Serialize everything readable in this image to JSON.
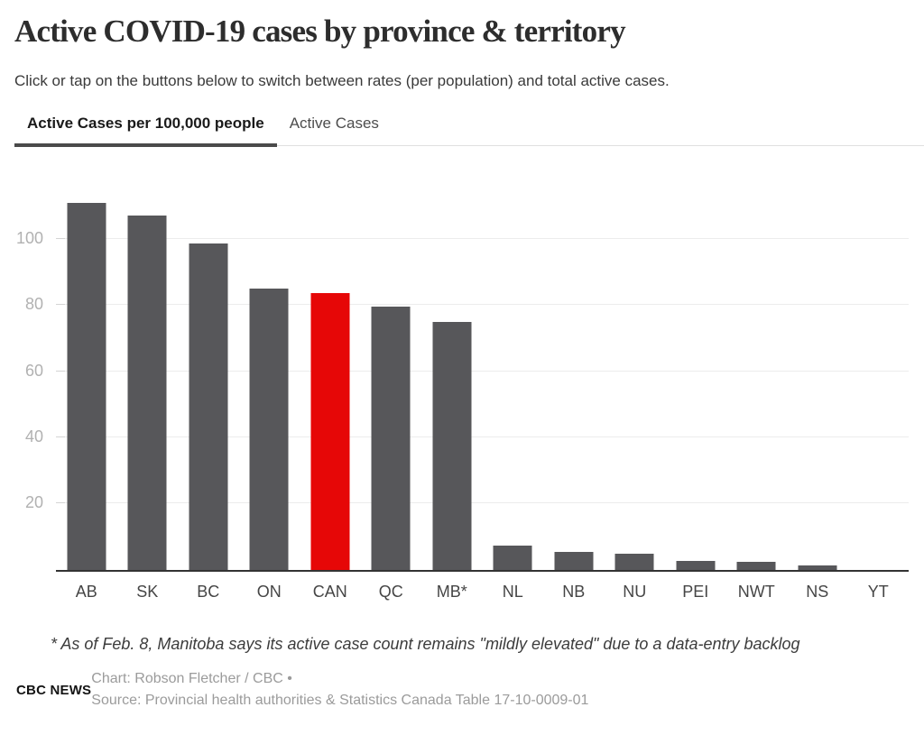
{
  "header": {
    "title": "Active COVID-19 cases by province & territory",
    "subtitle": "Click or tap on the buttons below to switch between rates (per population) and total active cases."
  },
  "tabs": [
    {
      "label": "Active Cases per 100,000 people",
      "active": true
    },
    {
      "label": "Active Cases",
      "active": false
    }
  ],
  "chart_data": {
    "type": "bar",
    "categories": [
      "AB",
      "SK",
      "BC",
      "ON",
      "CAN",
      "QC",
      "MB*",
      "NL",
      "NB",
      "NU",
      "PEI",
      "NWT",
      "NS",
      "YT"
    ],
    "values": [
      111,
      107,
      98.5,
      85,
      83.5,
      79.5,
      75,
      7.2,
      5.2,
      4.8,
      2.5,
      2.2,
      1.2,
      0
    ],
    "highlight_category": "CAN",
    "bar_color": "#57575a",
    "highlight_color": "#e60707",
    "yticks": [
      20,
      40,
      60,
      80,
      100
    ],
    "ylim": [
      0,
      119.5
    ],
    "grid": true,
    "legend": "none",
    "xlabel": "",
    "ylabel": ""
  },
  "footnote": "* As of Feb. 8, Manitoba says its active case count remains \"mildly elevated\" due to a data-entry backlog",
  "footer": {
    "logo": "CBC NEWS",
    "credit_line1": "Chart: Robson Fletcher / CBC •",
    "credit_line2": "Source: Provincial health authorities & Statistics Canada Table 17-10-0009-01"
  }
}
